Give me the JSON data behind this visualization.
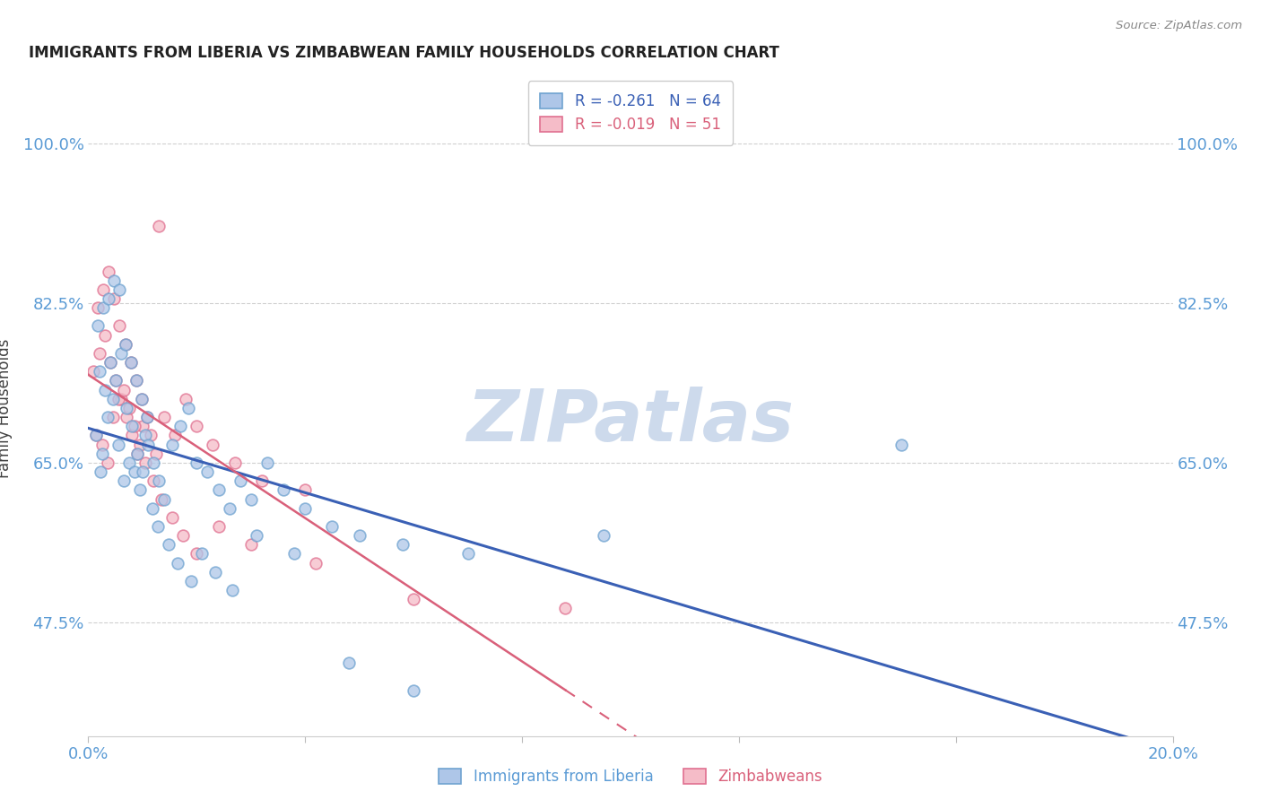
{
  "title": "IMMIGRANTS FROM LIBERIA VS ZIMBABWEAN FAMILY HOUSEHOLDS CORRELATION CHART",
  "source": "Source: ZipAtlas.com",
  "ylabel": "Family Households",
  "yticks": [
    47.5,
    65.0,
    82.5,
    100.0
  ],
  "ytick_labels": [
    "47.5%",
    "65.0%",
    "82.5%",
    "100.0%"
  ],
  "xlim": [
    0.0,
    20.0
  ],
  "ylim": [
    35.0,
    107.0
  ],
  "legend": {
    "liberia_R": "-0.261",
    "liberia_N": "64",
    "zimbabwe_R": "-0.019",
    "zimbabwe_N": "51"
  },
  "liberia_scatter_x": [
    0.15,
    0.25,
    0.35,
    0.45,
    0.55,
    0.65,
    0.75,
    0.85,
    0.95,
    1.05,
    0.2,
    0.3,
    0.4,
    0.5,
    0.6,
    0.7,
    0.8,
    0.9,
    1.0,
    1.1,
    1.2,
    1.3,
    1.4,
    1.55,
    1.7,
    1.85,
    2.0,
    2.2,
    2.4,
    2.6,
    2.8,
    3.0,
    3.3,
    3.6,
    4.0,
    4.5,
    5.0,
    5.8,
    7.0,
    9.5,
    0.18,
    0.28,
    0.38,
    0.48,
    0.58,
    0.68,
    0.78,
    0.88,
    0.98,
    1.08,
    1.18,
    1.28,
    1.48,
    1.65,
    1.9,
    2.1,
    2.35,
    2.65,
    3.1,
    3.8,
    4.8,
    6.0,
    15.0,
    0.22
  ],
  "liberia_scatter_y": [
    68.0,
    66.0,
    70.0,
    72.0,
    67.0,
    63.0,
    65.0,
    64.0,
    62.0,
    68.0,
    75.0,
    73.0,
    76.0,
    74.0,
    77.0,
    71.0,
    69.0,
    66.0,
    64.0,
    67.0,
    65.0,
    63.0,
    61.0,
    67.0,
    69.0,
    71.0,
    65.0,
    64.0,
    62.0,
    60.0,
    63.0,
    61.0,
    65.0,
    62.0,
    60.0,
    58.0,
    57.0,
    56.0,
    55.0,
    57.0,
    80.0,
    82.0,
    83.0,
    85.0,
    84.0,
    78.0,
    76.0,
    74.0,
    72.0,
    70.0,
    60.0,
    58.0,
    56.0,
    54.0,
    52.0,
    55.0,
    53.0,
    51.0,
    57.0,
    55.0,
    43.0,
    40.0,
    67.0,
    64.0
  ],
  "zimbabwe_scatter_x": [
    0.1,
    0.2,
    0.3,
    0.4,
    0.5,
    0.6,
    0.7,
    0.8,
    0.9,
    1.0,
    0.15,
    0.25,
    0.35,
    0.45,
    0.55,
    0.65,
    0.75,
    0.85,
    0.95,
    1.05,
    1.15,
    1.25,
    1.4,
    1.6,
    1.8,
    2.0,
    2.3,
    2.7,
    3.2,
    4.0,
    0.18,
    0.28,
    0.38,
    0.48,
    0.58,
    0.68,
    0.78,
    0.88,
    0.98,
    1.08,
    1.2,
    1.35,
    1.55,
    1.75,
    2.0,
    2.4,
    3.0,
    4.2,
    6.0,
    8.8,
    1.3
  ],
  "zimbabwe_scatter_y": [
    75.0,
    77.0,
    79.0,
    76.0,
    74.0,
    72.0,
    70.0,
    68.0,
    66.0,
    69.0,
    68.0,
    67.0,
    65.0,
    70.0,
    72.0,
    73.0,
    71.0,
    69.0,
    67.0,
    65.0,
    68.0,
    66.0,
    70.0,
    68.0,
    72.0,
    69.0,
    67.0,
    65.0,
    63.0,
    62.0,
    82.0,
    84.0,
    86.0,
    83.0,
    80.0,
    78.0,
    76.0,
    74.0,
    72.0,
    70.0,
    63.0,
    61.0,
    59.0,
    57.0,
    55.0,
    58.0,
    56.0,
    54.0,
    50.0,
    49.0,
    91.0
  ],
  "liberia_color": "#aec6e8",
  "liberia_edge_color": "#6fa3d0",
  "zimbabwe_color": "#f5bcc8",
  "zimbabwe_edge_color": "#e07090",
  "liberia_line_color": "#3a60b5",
  "zimbabwe_line_color": "#d9607a",
  "grid_color": "#d0d0d0",
  "title_color": "#222222",
  "axis_label_color": "#5b9bd5",
  "source_color": "#888888",
  "watermark_color": "#cddaec",
  "background_color": "#ffffff",
  "marker_size": 85,
  "marker_alpha": 0.75
}
